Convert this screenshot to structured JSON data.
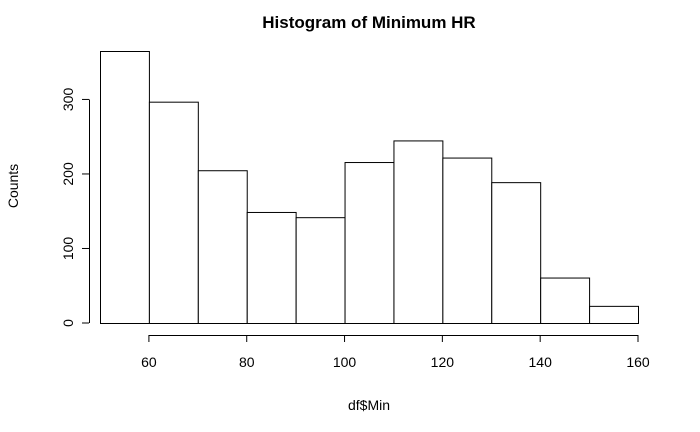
{
  "chart_data": {
    "type": "bar",
    "title": "Histogram of Minimum HR",
    "xlabel": "df$Min",
    "ylabel": "Counts",
    "bins": [
      {
        "start": 50,
        "end": 60,
        "count": 365
      },
      {
        "start": 60,
        "end": 70,
        "count": 297
      },
      {
        "start": 70,
        "end": 80,
        "count": 205
      },
      {
        "start": 80,
        "end": 90,
        "count": 149
      },
      {
        "start": 90,
        "end": 100,
        "count": 142
      },
      {
        "start": 100,
        "end": 110,
        "count": 216
      },
      {
        "start": 110,
        "end": 120,
        "count": 245
      },
      {
        "start": 120,
        "end": 130,
        "count": 222
      },
      {
        "start": 130,
        "end": 140,
        "count": 189
      },
      {
        "start": 140,
        "end": 150,
        "count": 61
      },
      {
        "start": 150,
        "end": 160,
        "count": 23
      }
    ],
    "xticks": [
      60,
      80,
      100,
      120,
      140,
      160
    ],
    "yticks": [
      0,
      100,
      200,
      300
    ],
    "xlim": [
      50,
      160
    ],
    "ylim": [
      0,
      365
    ],
    "grid": false,
    "legend": "none",
    "bar_fill": "#ffffff",
    "bar_stroke": "#000000"
  }
}
